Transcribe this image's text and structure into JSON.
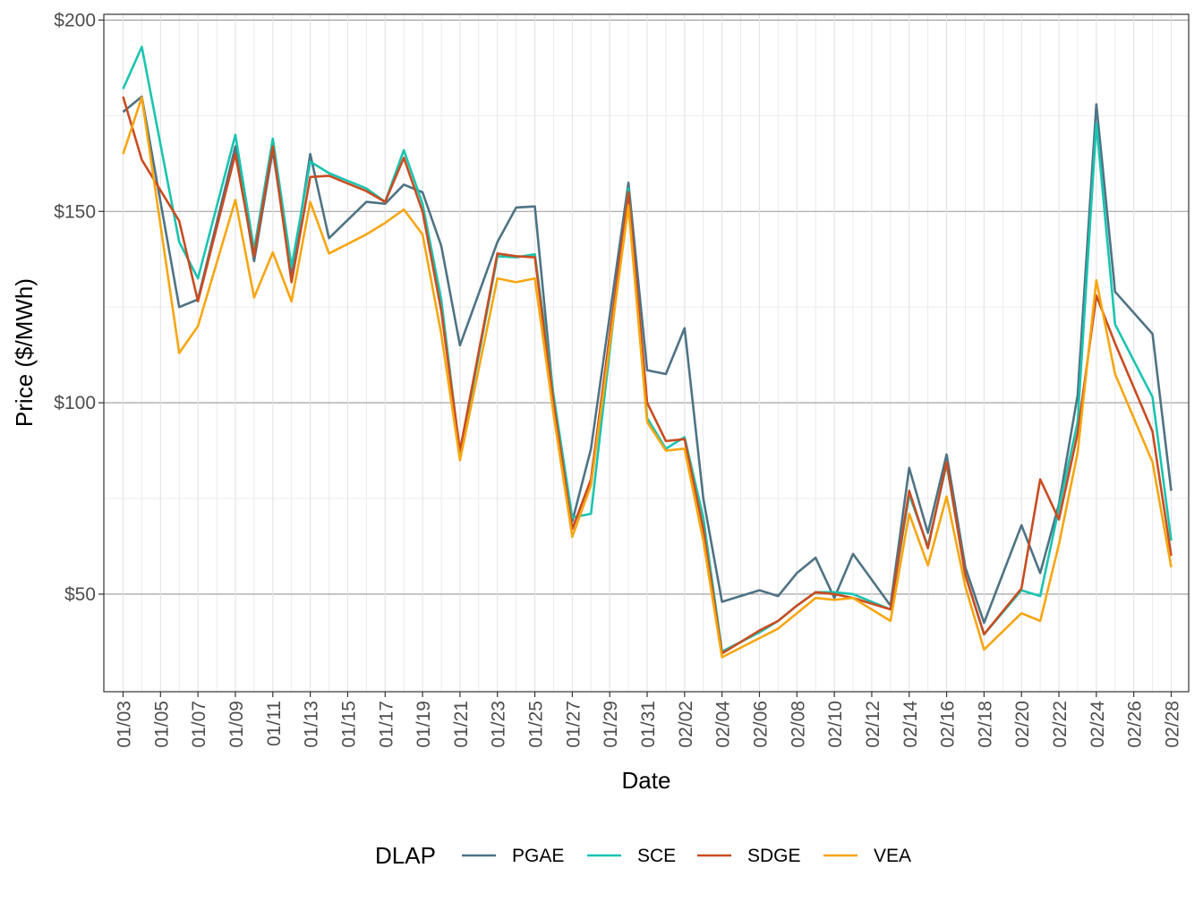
{
  "chart_data": {
    "type": "line",
    "title": "",
    "xlabel": "Date",
    "ylabel": "Price ($/MWh)",
    "x": [
      "01/03",
      "01/04",
      "01/06",
      "01/07",
      "01/09",
      "01/10",
      "01/11",
      "01/12",
      "01/13",
      "01/14",
      "01/16",
      "01/17",
      "01/18",
      "01/19",
      "01/20",
      "01/21",
      "01/23",
      "01/24",
      "01/25",
      "01/26",
      "01/27",
      "01/28",
      "01/30",
      "01/31",
      "02/01",
      "02/02",
      "02/03",
      "02/04",
      "02/06",
      "02/07",
      "02/08",
      "02/09",
      "02/10",
      "02/11",
      "02/13",
      "02/14",
      "02/15",
      "02/16",
      "02/17",
      "02/18",
      "02/20",
      "02/21",
      "02/22",
      "02/23",
      "02/24",
      "02/25",
      "02/27",
      "02/28"
    ],
    "series": [
      {
        "name": "PGAE",
        "color": "#4e7384",
        "values": [
          176,
          180,
          125,
          127,
          167,
          137,
          166,
          133,
          165,
          143,
          152.5,
          152,
          157,
          155,
          141,
          115,
          142,
          151,
          151.3,
          101,
          69,
          88,
          157.5,
          108.5,
          107.5,
          119.5,
          75,
          48,
          51,
          49.5,
          55.5,
          59.5,
          49,
          60.5,
          47,
          83,
          66,
          86.5,
          57,
          42.5,
          68,
          55.5,
          73.5,
          102,
          178,
          129,
          118,
          77
        ]
      },
      {
        "name": "SCE",
        "color": "#1ac4b0",
        "values": [
          182,
          193,
          142,
          132.5,
          170,
          140,
          169,
          135.5,
          163,
          160,
          156,
          152.5,
          166,
          152,
          127,
          86.5,
          138.3,
          138,
          138.8,
          102,
          70,
          71,
          156,
          96,
          88,
          91,
          70,
          35,
          40,
          43,
          47,
          50.5,
          50.5,
          50,
          46,
          76,
          62.5,
          84,
          55,
          39.5,
          51,
          49.5,
          72.5,
          95,
          173,
          120.5,
          101.5,
          64
        ]
      },
      {
        "name": "SDGE",
        "color": "#c94c21",
        "values": [
          180,
          163.5,
          147.5,
          126.5,
          165,
          138.3,
          167,
          131.5,
          159,
          159.3,
          155.3,
          152.5,
          164,
          150,
          124,
          87.5,
          139,
          138.3,
          138,
          100,
          67,
          80,
          155,
          100,
          90,
          90.5,
          67,
          34.5,
          40.5,
          43,
          47,
          50.5,
          50,
          49,
          46,
          77,
          62,
          84.5,
          55,
          39.5,
          51.5,
          80,
          69.5,
          92,
          128,
          115.5,
          92.5,
          60
        ]
      },
      {
        "name": "VEA",
        "color": "#f6a612",
        "values": [
          165,
          179.8,
          113,
          120,
          153,
          127.5,
          139.3,
          126.5,
          152.5,
          139,
          144,
          147,
          150.5,
          144,
          118,
          85,
          132.5,
          131.5,
          132.5,
          97,
          65,
          78.5,
          151.5,
          95,
          87.5,
          88,
          64,
          33.5,
          38.5,
          41,
          45,
          49,
          48.5,
          49,
          43,
          71,
          57.5,
          75.5,
          52,
          35.5,
          45,
          43,
          63,
          87,
          132,
          107.5,
          84.5,
          57
        ]
      }
    ],
    "y_ticks": [
      "$50",
      "$100",
      "$150",
      "$200"
    ],
    "y_tick_values": [
      50,
      100,
      150,
      200
    ],
    "ylim": [
      24.5,
      201.5
    ],
    "x_tick_labels": [
      "01/03",
      "01/05",
      "01/07",
      "01/09",
      "01/11",
      "01/13",
      "01/15",
      "01/17",
      "01/19",
      "01/21",
      "01/23",
      "01/25",
      "01/27",
      "01/29",
      "01/31",
      "02/02",
      "02/04",
      "02/06",
      "02/08",
      "02/10",
      "02/12",
      "02/14",
      "02/16",
      "02/18",
      "02/20",
      "02/22",
      "02/24",
      "02/26",
      "02/28"
    ],
    "x_range": [
      "01/03",
      "02/28"
    ],
    "grid": true,
    "legend": {
      "title": "DLAP",
      "position": "bottom",
      "entries": [
        "PGAE",
        "SCE",
        "SDGE",
        "VEA"
      ]
    }
  }
}
